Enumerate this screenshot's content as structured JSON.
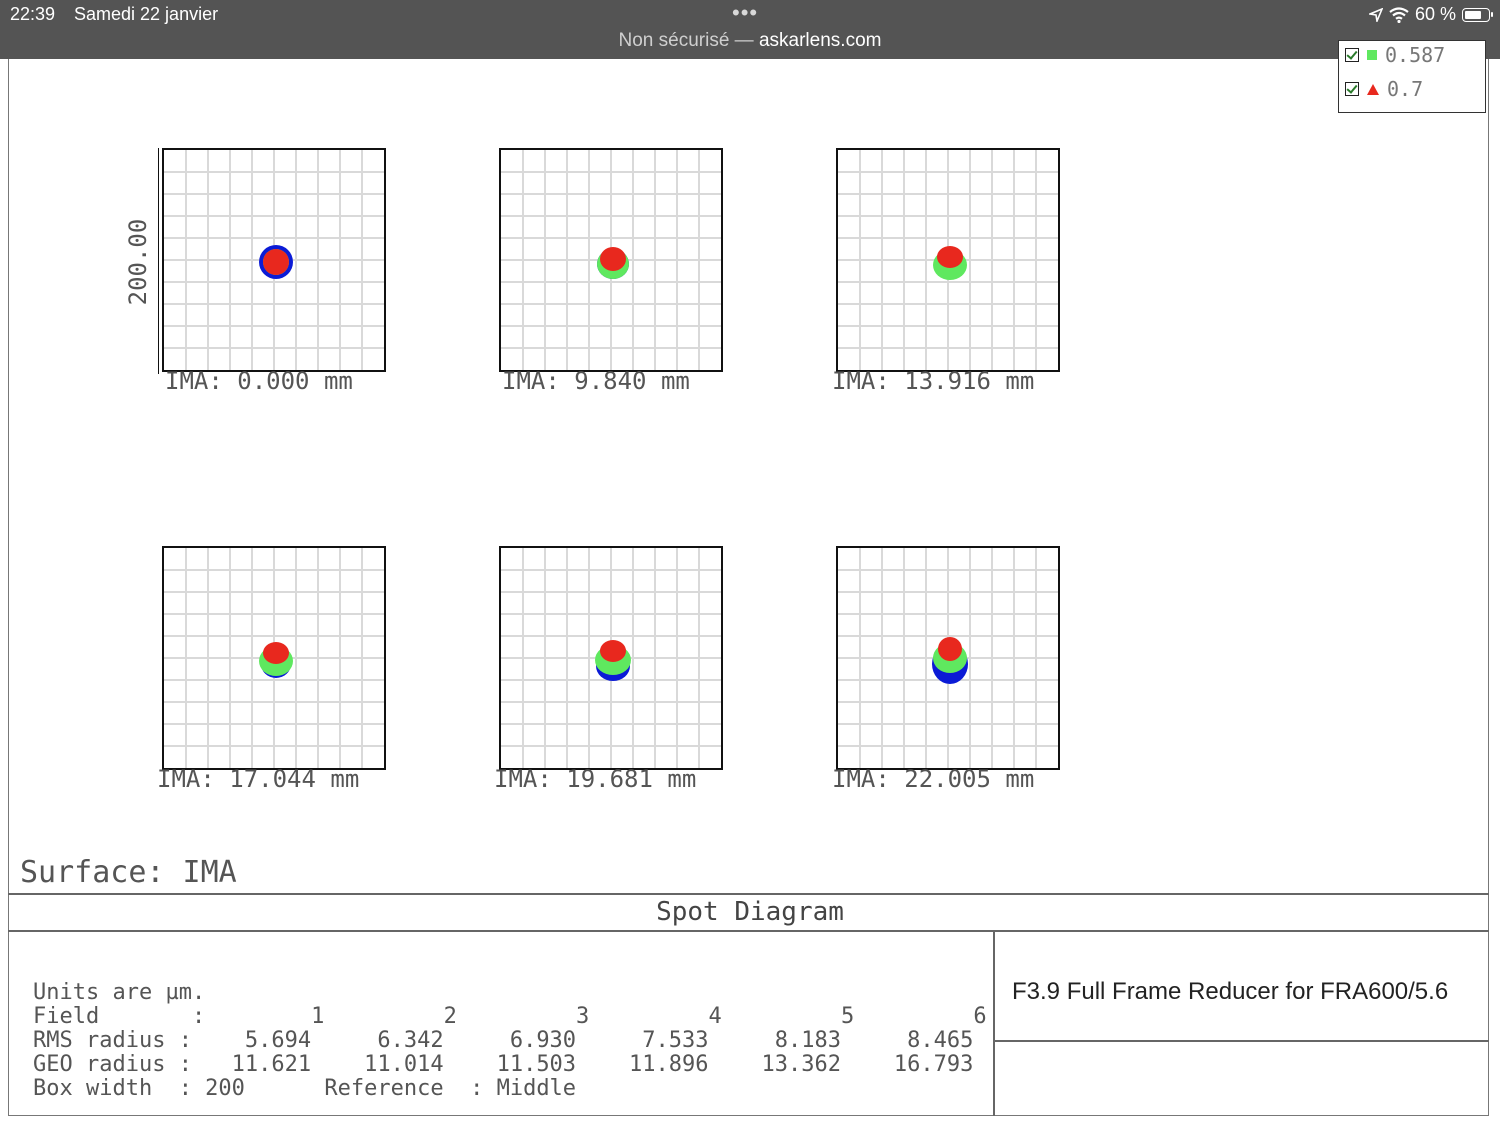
{
  "status_bar": {
    "time": "22:39",
    "date": "Samedi 22 janvier",
    "dots": "•••",
    "security": "Non sécurisé —",
    "domain": "askarlens.com",
    "battery_pct": "60 %"
  },
  "legend": {
    "partial_label": "0.587",
    "last_label": "0.7",
    "colors": {
      "blue": "#0b1bd6",
      "green": "#5fe85f",
      "red": "#e8281e"
    }
  },
  "y_axis_label": "200.00",
  "plots": [
    {
      "label": "IMA: 0.000 mm"
    },
    {
      "label": "IMA: 9.840 mm"
    },
    {
      "label": "IMA: 13.916 mm"
    },
    {
      "label": "IMA: 17.044 mm"
    },
    {
      "label": "IMA: 19.681 mm"
    },
    {
      "label": "IMA: 22.005 mm"
    }
  ],
  "surface": "Surface: IMA",
  "title": "Spot Diagram",
  "stats": {
    "units": "Units are µm.",
    "field_row": "Field       :        1         2         3         4         5         6",
    "rms_row": "RMS radius :    5.694     6.342     6.930     7.533     8.183     8.465",
    "geo_row": "GEO radius :   11.621    11.014    11.503    11.896    13.362    16.793",
    "box_row": "Box width  : 200      Reference  : Middle"
  },
  "product_name": "F3.9 Full Frame Reducer for FRA600/5.6"
}
